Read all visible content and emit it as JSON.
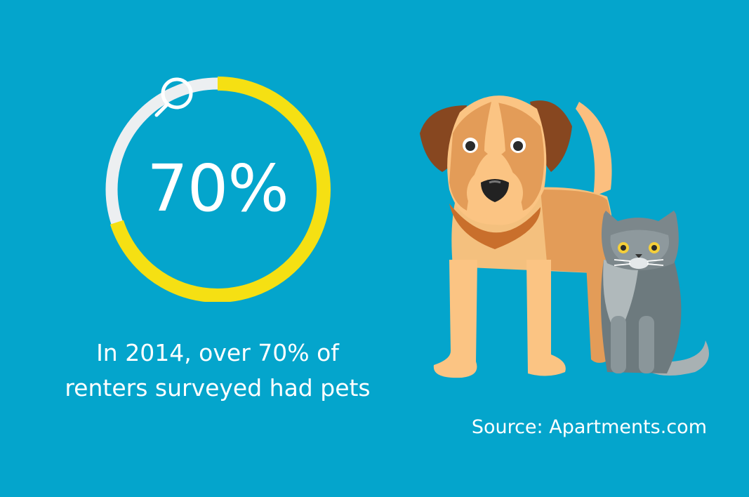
{
  "stat": {
    "value_label": "70%",
    "fraction": 0.7
  },
  "caption": {
    "line1": "In 2014, over 70% of",
    "line2": "renters surveyed had pets"
  },
  "source": "Source: Apartments.com",
  "colors": {
    "background": "#04a5cc",
    "ring_filled": "#f5e013",
    "ring_remaining": "#eceff1",
    "text": "#ffffff"
  },
  "icons": [
    "magnifier-icon",
    "dog-illustration",
    "cat-illustration"
  ]
}
